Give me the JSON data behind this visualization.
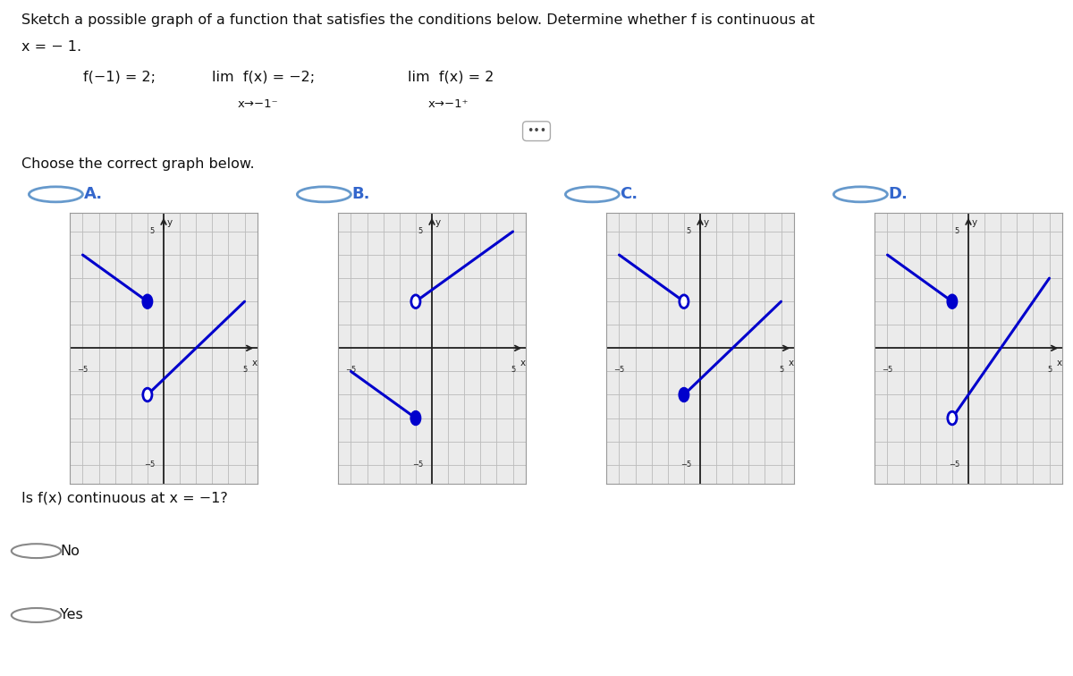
{
  "title_line1": "Sketch a possible graph of a function that satisfies the conditions below. Determine whether f is continuous at",
  "title_line2": "x = − 1.",
  "cond_main": "f(−1) = 2;    lim  f(x) = −2;    lim  f(x) = 2",
  "cond_sub1": "x→−1⁻",
  "cond_sub2": "x→−1⁺",
  "choose_text": "Choose the correct graph below.",
  "labels": [
    "A.",
    "B.",
    "C.",
    "D."
  ],
  "graphs_render": {
    "A": {
      "segments": [
        {
          "x": [
            -5,
            -1
          ],
          "y": [
            4,
            2
          ]
        },
        {
          "x": [
            -1,
            5
          ],
          "y": [
            -2,
            2
          ]
        }
      ],
      "filled": [
        [
          -1,
          2
        ]
      ],
      "open": [
        [
          -1,
          -2
        ]
      ]
    },
    "B": {
      "segments": [
        {
          "x": [
            -5,
            -1
          ],
          "y": [
            -1,
            -3
          ]
        },
        {
          "x": [
            -1,
            5
          ],
          "y": [
            2,
            5
          ]
        }
      ],
      "filled": [
        [
          -1,
          -3
        ]
      ],
      "open": [
        [
          -1,
          2
        ]
      ]
    },
    "C": {
      "segments": [
        {
          "x": [
            -5,
            -1
          ],
          "y": [
            4,
            2
          ]
        },
        {
          "x": [
            -1,
            5
          ],
          "y": [
            -2,
            2
          ]
        }
      ],
      "filled": [
        [
          -1,
          -2
        ]
      ],
      "open": [
        [
          -1,
          2
        ]
      ]
    },
    "D": {
      "segments": [
        {
          "x": [
            -5,
            -1
          ],
          "y": [
            4,
            2
          ]
        },
        {
          "x": [
            -1,
            5
          ],
          "y": [
            -3,
            3
          ]
        }
      ],
      "filled": [
        [
          -1,
          2
        ]
      ],
      "open": [
        [
          -1,
          -3
        ]
      ]
    }
  },
  "question_text": "Is f(x) continuous at x = −1?",
  "answers": [
    "No",
    "Yes"
  ],
  "bg_color": "#ffffff",
  "line_color": "#0000cc",
  "grid_color": "#bbbbbb",
  "axis_color": "#222222",
  "label_color": "#3366cc",
  "radio_color": "#6699cc"
}
